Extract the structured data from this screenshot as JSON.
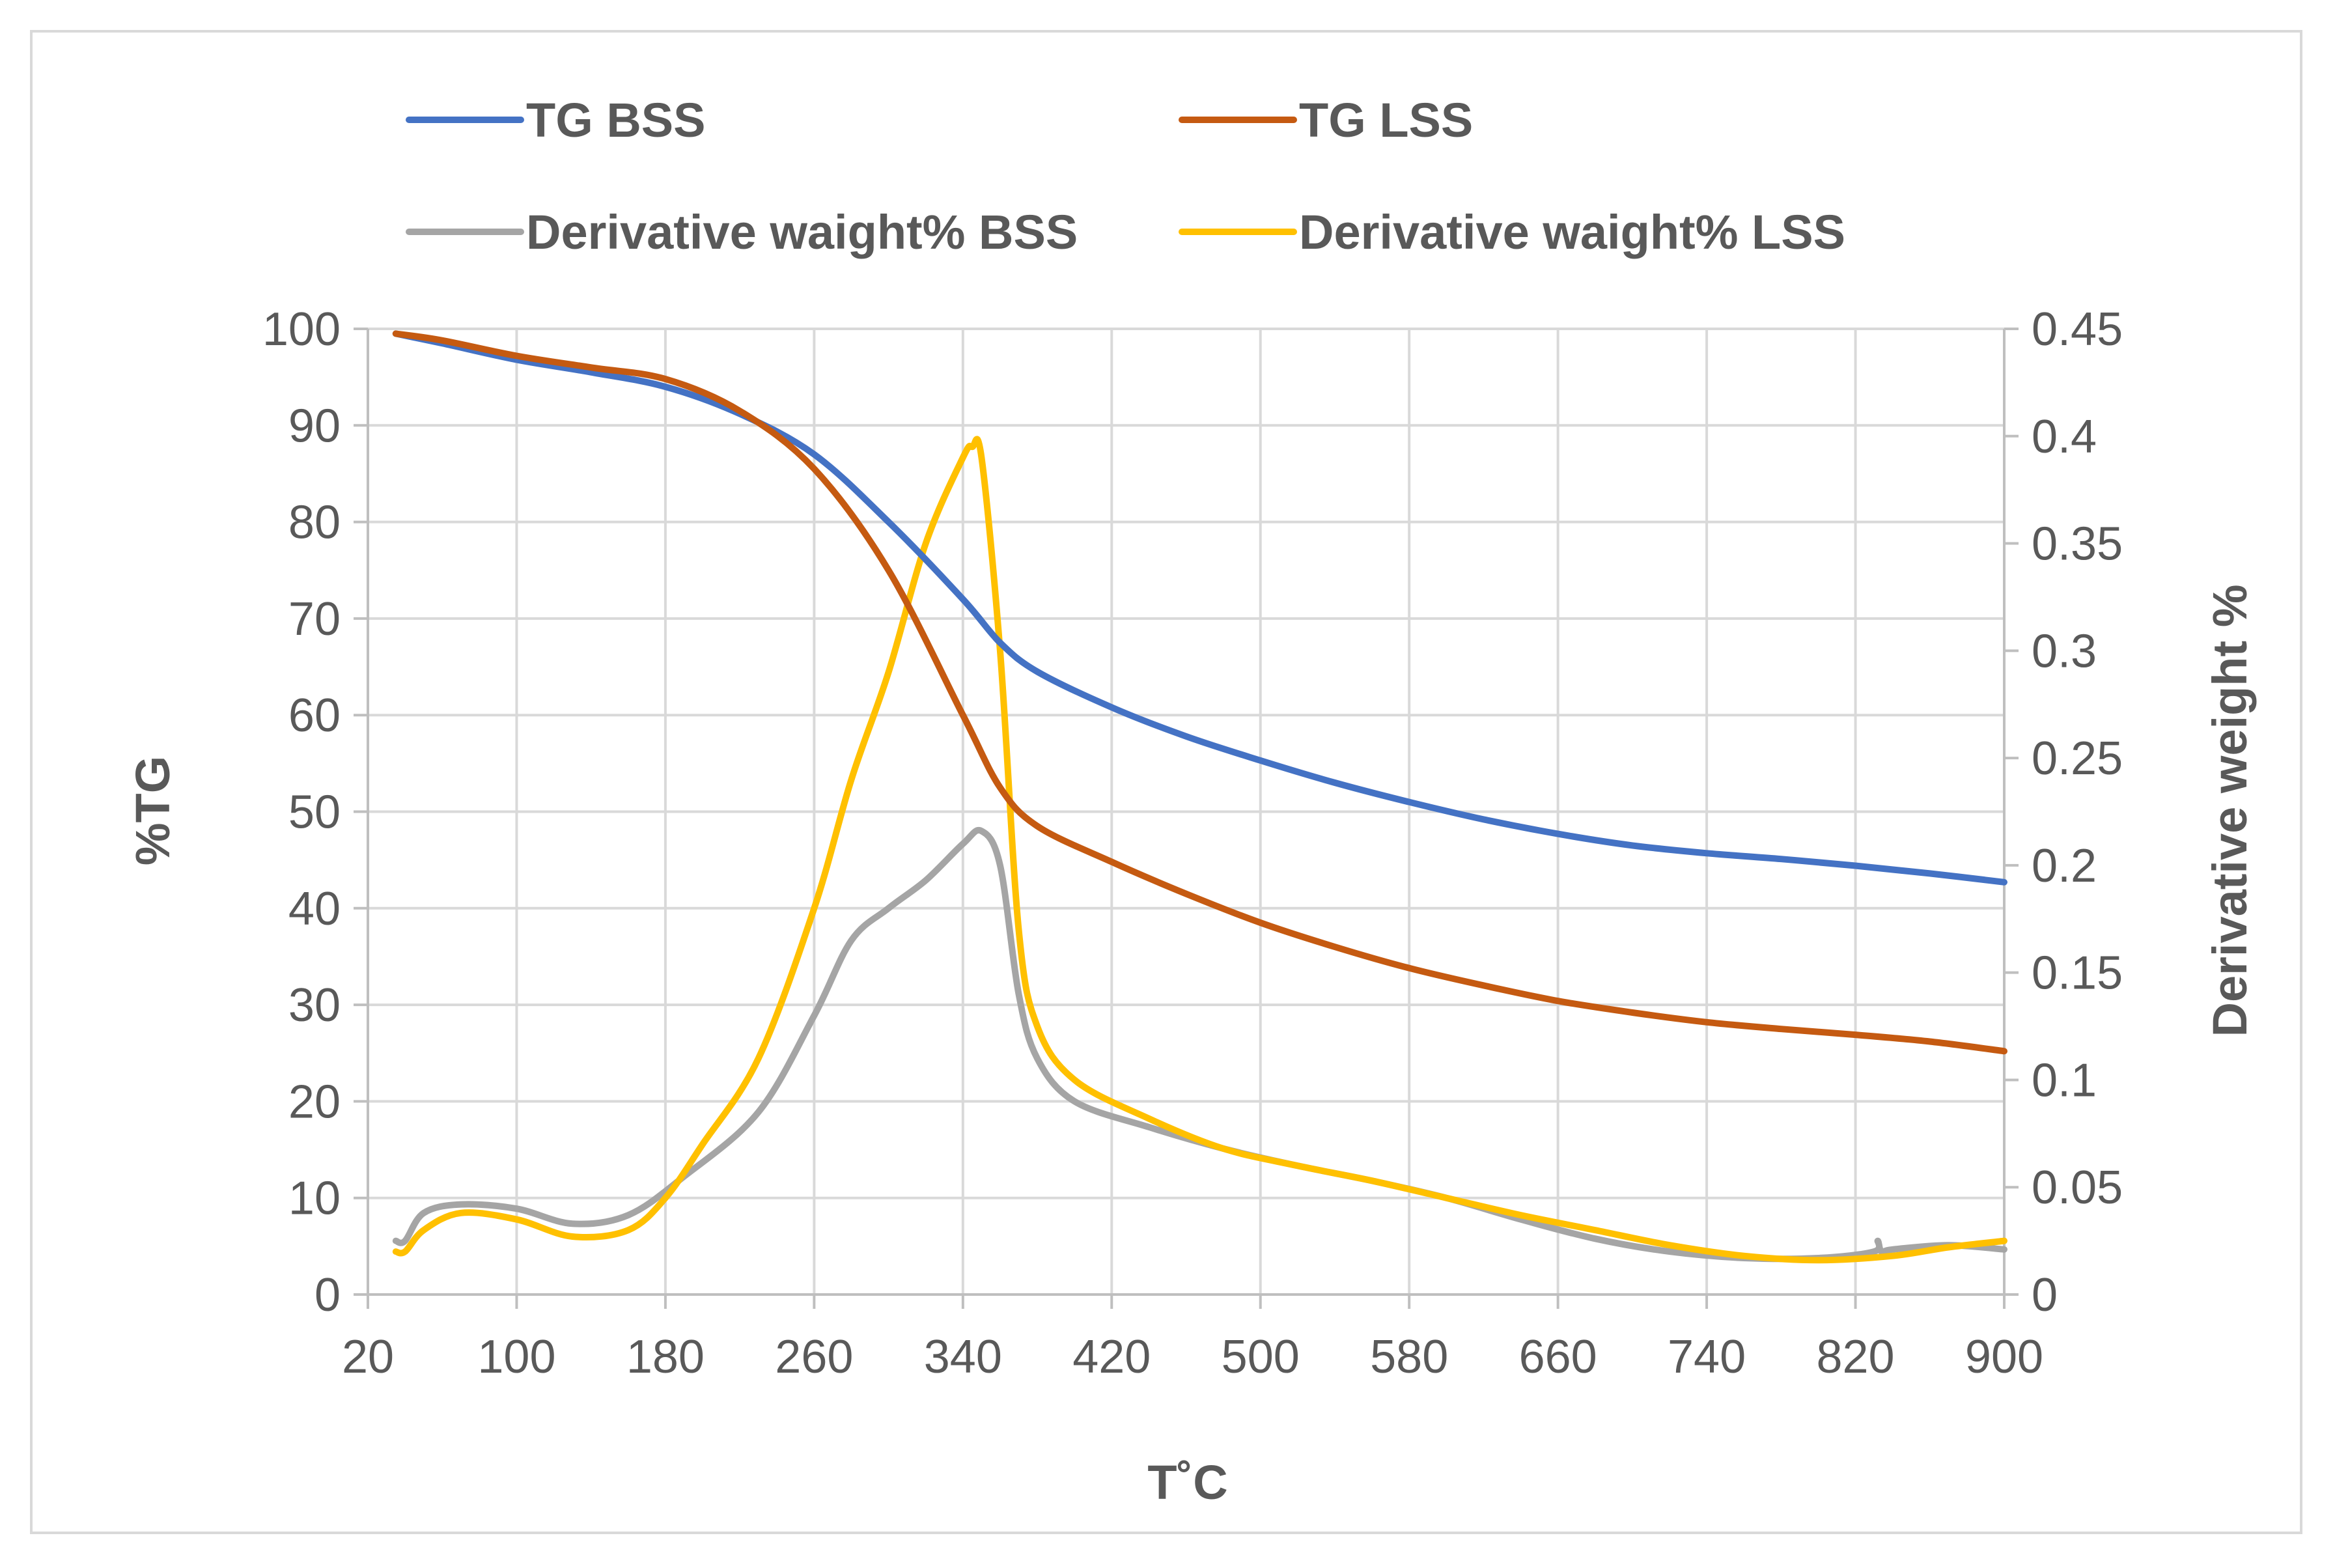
{
  "chart_data": {
    "type": "line",
    "title": "",
    "xlabel": "T˚C",
    "ylabel": "%TG",
    "y2label": "Derivative weight %",
    "xlim": [
      20,
      900
    ],
    "ylim": [
      0,
      100
    ],
    "y2lim": [
      0,
      0.45
    ],
    "x_ticks": [
      "20",
      "100",
      "180",
      "260",
      "340",
      "420",
      "500",
      "580",
      "660",
      "740",
      "820",
      "900"
    ],
    "y_ticks": [
      "0",
      "10",
      "20",
      "30",
      "40",
      "50",
      "60",
      "70",
      "80",
      "90",
      "100"
    ],
    "y2_ticks": [
      "0",
      "0.05",
      "0.1",
      "0.15",
      "0.2",
      "0.25",
      "0.3",
      "0.35",
      "0.4",
      "0.45"
    ],
    "grid": true,
    "legend_position": "top",
    "series": [
      {
        "name": "TG BSS",
        "axis": "left",
        "color": "#4472c4",
        "x": [
          35,
          60,
          100,
          140,
          180,
          220,
          260,
          300,
          340,
          360,
          380,
          420,
          460,
          500,
          540,
          580,
          620,
          660,
          700,
          740,
          780,
          820,
          860,
          900
        ],
        "y": [
          99.5,
          98.5,
          96.8,
          95.5,
          94,
          91.2,
          87,
          80,
          72,
          67.5,
          64.5,
          60.8,
          57.8,
          55.3,
          53,
          51,
          49.2,
          47.7,
          46.5,
          45.7,
          45.1,
          44.4,
          43.6,
          42.7
        ]
      },
      {
        "name": "TG LSS",
        "axis": "left",
        "color": "#c55a11",
        "x": [
          35,
          60,
          100,
          140,
          180,
          220,
          260,
          300,
          340,
          360,
          380,
          420,
          460,
          500,
          540,
          580,
          620,
          660,
          700,
          740,
          780,
          820,
          860,
          900
        ],
        "y": [
          99.5,
          98.8,
          97.2,
          96,
          94.8,
          91.5,
          85.5,
          75,
          60,
          52.5,
          48.5,
          44.8,
          41.5,
          38.5,
          36,
          33.8,
          32,
          30.4,
          29.2,
          28.2,
          27.5,
          26.9,
          26.2,
          25.2
        ]
      },
      {
        "name": "Derivative waight% BSS",
        "axis": "right",
        "color": "#a5a5a5",
        "x": [
          35,
          40,
          50,
          70,
          100,
          130,
          160,
          190,
          230,
          260,
          280,
          300,
          320,
          340,
          350,
          360,
          370,
          380,
          400,
          440,
          480,
          520,
          560,
          600,
          640,
          680,
          720,
          760,
          800,
          830,
          832,
          834,
          840,
          870,
          900
        ],
        "y": [
          0.025,
          0.025,
          0.038,
          0.042,
          0.04,
          0.033,
          0.037,
          0.055,
          0.085,
          0.13,
          0.165,
          0.18,
          0.193,
          0.21,
          0.216,
          0.2,
          0.14,
          0.11,
          0.09,
          0.078,
          0.068,
          0.06,
          0.053,
          0.045,
          0.035,
          0.026,
          0.02,
          0.017,
          0.017,
          0.02,
          0.025,
          0.02,
          0.021,
          0.023,
          0.021
        ]
      },
      {
        "name": "Derivative waight% LSS",
        "axis": "right",
        "color": "#ffc000",
        "x": [
          35,
          40,
          50,
          70,
          100,
          130,
          160,
          180,
          200,
          230,
          260,
          280,
          300,
          320,
          340,
          345,
          350,
          360,
          370,
          380,
          400,
          440,
          480,
          520,
          560,
          600,
          640,
          680,
          720,
          760,
          800,
          840,
          870,
          900
        ],
        "y": [
          0.02,
          0.02,
          0.03,
          0.038,
          0.035,
          0.027,
          0.03,
          0.045,
          0.07,
          0.11,
          0.18,
          0.24,
          0.29,
          0.35,
          0.39,
          0.395,
          0.39,
          0.3,
          0.17,
          0.125,
          0.1,
          0.082,
          0.068,
          0.06,
          0.053,
          0.045,
          0.037,
          0.03,
          0.023,
          0.018,
          0.016,
          0.018,
          0.022,
          0.025
        ]
      }
    ]
  }
}
